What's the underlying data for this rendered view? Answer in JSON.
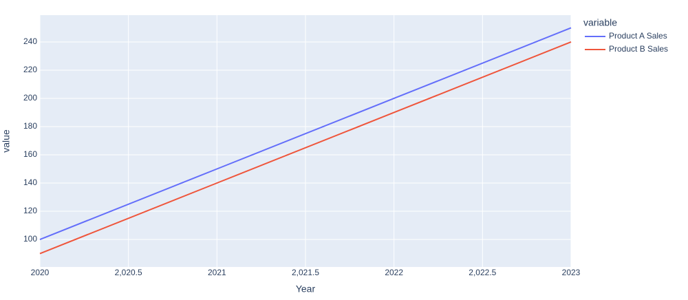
{
  "chart_data": {
    "type": "line",
    "x_label": "Year",
    "y_label": "value",
    "legend_title": "variable",
    "x": [
      2020,
      2021,
      2022,
      2023
    ],
    "series": [
      {
        "name": "Product A Sales",
        "color": "#636efa",
        "values": [
          100,
          150,
          200,
          250
        ]
      },
      {
        "name": "Product B Sales",
        "color": "#ef553b",
        "values": [
          90,
          140,
          190,
          240
        ]
      }
    ],
    "xlim": [
      2020,
      2023
    ],
    "xticks": [
      2020,
      {
        "value": 2020.5,
        "label": "2,020.5"
      },
      2021,
      {
        "value": 2021.5,
        "label": "2,021.5"
      },
      2022,
      {
        "value": 2022.5,
        "label": "2,022.5"
      },
      2023
    ],
    "ylim": [
      80.5,
      259
    ],
    "yticks": [
      100,
      120,
      140,
      160,
      180,
      200,
      220,
      240
    ],
    "grid": true,
    "background": "#e5ecf6"
  }
}
